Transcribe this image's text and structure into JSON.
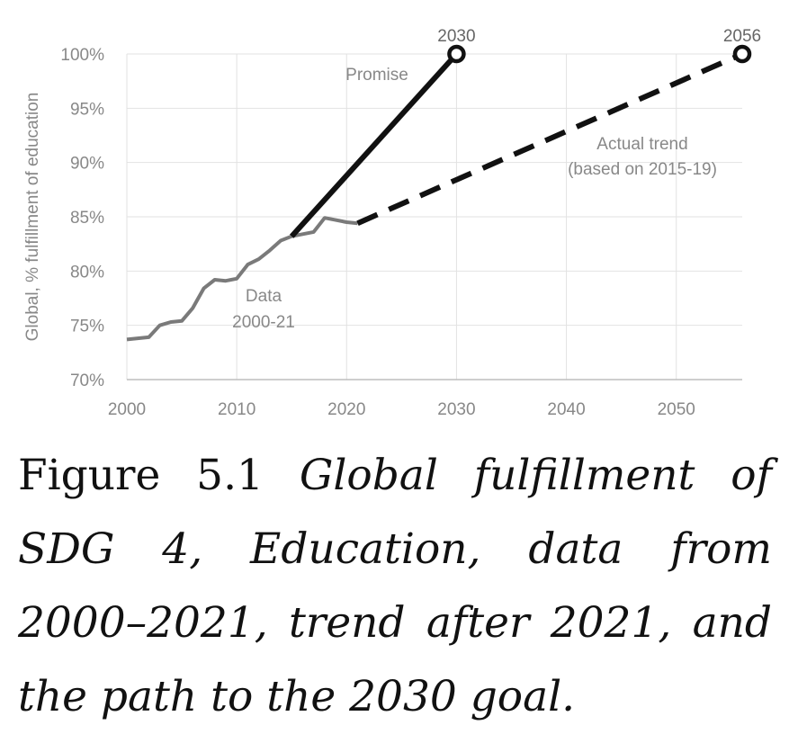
{
  "chart_data": {
    "type": "line",
    "ylabel": "Global, % fulfillment of education",
    "xlim": [
      2000,
      2056
    ],
    "ylim": [
      70,
      100
    ],
    "x_ticks": [
      2000,
      2010,
      2020,
      2030,
      2040,
      2050
    ],
    "y_ticks": [
      70,
      75,
      80,
      85,
      90,
      95,
      100
    ],
    "y_tick_labels": [
      "70%",
      "75%",
      "80%",
      "85%",
      "90%",
      "95%",
      "100%"
    ],
    "x_tick_labels": [
      "2000",
      "2010",
      "2020",
      "2030",
      "2040",
      "2050"
    ],
    "grid": true,
    "series": [
      {
        "name": "Data 2000-21",
        "color": "#7a7a7a",
        "style": "solid",
        "points": [
          [
            2000,
            73.7
          ],
          [
            2001,
            73.8
          ],
          [
            2002,
            73.9
          ],
          [
            2003,
            75.0
          ],
          [
            2004,
            75.3
          ],
          [
            2005,
            75.4
          ],
          [
            2006,
            76.6
          ],
          [
            2007,
            78.4
          ],
          [
            2008,
            79.2
          ],
          [
            2009,
            79.1
          ],
          [
            2010,
            79.3
          ],
          [
            2011,
            80.6
          ],
          [
            2012,
            81.1
          ],
          [
            2013,
            81.9
          ],
          [
            2014,
            82.8
          ],
          [
            2015,
            83.2
          ],
          [
            2016,
            83.4
          ],
          [
            2017,
            83.6
          ],
          [
            2018,
            84.9
          ],
          [
            2019,
            84.7
          ],
          [
            2020,
            84.5
          ],
          [
            2021,
            84.4
          ]
        ]
      },
      {
        "name": "Promise",
        "color": "#111111",
        "style": "solid",
        "points": [
          [
            2015,
            83.2
          ],
          [
            2030,
            100
          ]
        ]
      },
      {
        "name": "Actual trend (based on 2015-19)",
        "color": "#111111",
        "style": "dashed",
        "points": [
          [
            2021,
            84.4
          ],
          [
            2056,
            100
          ]
        ]
      }
    ],
    "endpoints": [
      {
        "x": 2030,
        "y": 100,
        "label": "2030"
      },
      {
        "x": 2056,
        "y": 100,
        "label": "2056"
      }
    ],
    "annotations": {
      "promise": "Promise",
      "data_line1": "Data",
      "data_line2": "2000-21",
      "trend_line1": "Actual trend",
      "trend_line2": "(based on 2015-19)"
    }
  },
  "caption": {
    "prefix": "Figure 5.1",
    "text": "Global fulfillment of SDG 4, Education, data from 2000–2021, trend after 2021, and the path to the 2030 goal."
  }
}
